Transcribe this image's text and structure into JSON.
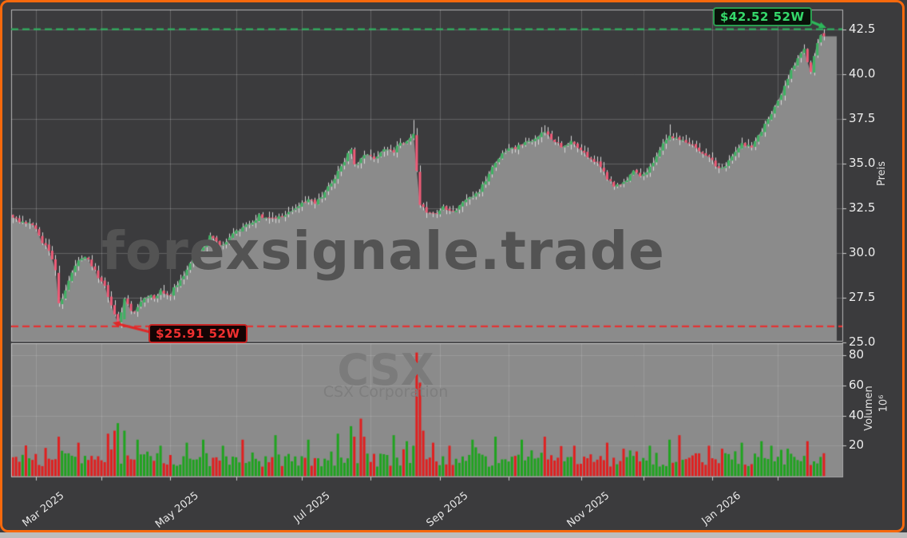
{
  "watermark": {
    "site": "forexsignale.trade",
    "symbol": "CSX",
    "company": "CSX Corporation"
  },
  "annotations": {
    "high": {
      "label": "$42.52 52W",
      "value": 42.52,
      "text_color": "#35d96b",
      "line_color": "#2fae5e"
    },
    "low": {
      "label": "$25.91 52W",
      "value": 25.91,
      "text_color": "#f13030",
      "line_color": "#e53232"
    }
  },
  "axes": {
    "price": {
      "title": "Preis",
      "tick_labels": [
        "42.5",
        "40.0",
        "37.5",
        "35.0",
        "32.5",
        "30.0",
        "27.5",
        "25.0"
      ],
      "ticks": [
        42.5,
        40.0,
        37.5,
        35.0,
        32.5,
        30.0,
        27.5,
        25.0
      ]
    },
    "volume": {
      "title": "Volumen",
      "unit": "10⁶",
      "tick_labels": [
        "80",
        "60",
        "40",
        "20"
      ],
      "ticks": [
        80,
        60,
        40,
        20
      ]
    },
    "x": {
      "labels": [
        "Mar 2025",
        "May 2025",
        "Jul 2025",
        "Sep 2025",
        "Nov 2025",
        "Jan 2026"
      ],
      "label_days": [
        7,
        48,
        88,
        130,
        173,
        213
      ],
      "tick_days": [
        7,
        27,
        48,
        68,
        88,
        109,
        130,
        151,
        173,
        192,
        213,
        233
      ]
    }
  },
  "chart_data": {
    "type": "candlestick+volume",
    "symbol": "CSX",
    "n_days": 248,
    "high_52w": 42.52,
    "low_52w": 25.91,
    "price_axis_range": [
      25.1,
      43.62
    ],
    "volume_axis_range_millions": [
      0,
      88
    ],
    "price_anchors": [
      [
        0,
        32.1
      ],
      [
        2,
        31.8
      ],
      [
        5,
        31.7
      ],
      [
        7,
        31.3
      ],
      [
        9,
        30.6
      ],
      [
        11,
        30.1
      ],
      [
        13,
        29.0
      ],
      [
        14,
        27.2
      ],
      [
        16,
        27.9
      ],
      [
        18,
        28.9
      ],
      [
        20,
        29.6
      ],
      [
        22,
        29.8
      ],
      [
        24,
        29.3
      ],
      [
        26,
        28.7
      ],
      [
        28,
        28.2
      ],
      [
        29,
        27.6
      ],
      [
        31,
        26.6
      ],
      [
        32,
        26.15
      ],
      [
        33,
        26.6
      ],
      [
        34,
        27.45
      ],
      [
        35,
        27.1
      ],
      [
        37,
        26.6
      ],
      [
        39,
        27.2
      ],
      [
        41,
        27.6
      ],
      [
        43,
        27.5
      ],
      [
        45,
        27.9
      ],
      [
        48,
        27.7
      ],
      [
        50,
        28.3
      ],
      [
        53,
        29.0
      ],
      [
        55,
        29.8
      ],
      [
        58,
        30.3
      ],
      [
        60,
        30.9
      ],
      [
        64,
        30.4
      ],
      [
        68,
        31.2
      ],
      [
        72,
        31.6
      ],
      [
        75,
        32.1
      ],
      [
        79,
        31.9
      ],
      [
        83,
        32.2
      ],
      [
        87,
        32.6
      ],
      [
        90,
        33.0
      ],
      [
        92,
        32.8
      ],
      [
        95,
        33.4
      ],
      [
        97,
        34.0
      ],
      [
        99,
        34.5
      ],
      [
        101,
        35.1
      ],
      [
        103,
        35.9
      ],
      [
        104,
        34.9
      ],
      [
        106,
        35.2
      ],
      [
        108,
        35.6
      ],
      [
        110,
        35.3
      ],
      [
        112,
        35.7
      ],
      [
        114,
        35.9
      ],
      [
        116,
        35.7
      ],
      [
        118,
        36.1
      ],
      [
        120,
        36.3
      ],
      [
        122,
        36.7
      ],
      [
        123,
        34.6
      ],
      [
        124,
        32.7
      ],
      [
        126,
        32.3
      ],
      [
        129,
        32.2
      ],
      [
        131,
        32.6
      ],
      [
        134,
        32.3
      ],
      [
        137,
        32.8
      ],
      [
        140,
        33.2
      ],
      [
        142,
        33.5
      ],
      [
        144,
        34.1
      ],
      [
        146,
        34.8
      ],
      [
        148,
        35.3
      ],
      [
        150,
        35.7
      ],
      [
        153,
        35.9
      ],
      [
        156,
        36.2
      ],
      [
        159,
        36.3
      ],
      [
        162,
        36.8
      ],
      [
        164,
        36.4
      ],
      [
        167,
        36.0
      ],
      [
        170,
        36.2
      ],
      [
        173,
        35.8
      ],
      [
        176,
        35.3
      ],
      [
        179,
        34.9
      ],
      [
        181,
        34.2
      ],
      [
        183,
        33.8
      ],
      [
        186,
        33.9
      ],
      [
        189,
        34.6
      ],
      [
        191,
        34.3
      ],
      [
        194,
        34.8
      ],
      [
        197,
        35.8
      ],
      [
        200,
        36.6
      ],
      [
        203,
        36.4
      ],
      [
        206,
        36.2
      ],
      [
        209,
        35.8
      ],
      [
        212,
        35.4
      ],
      [
        214,
        34.9
      ],
      [
        216,
        34.7
      ],
      [
        219,
        35.5
      ],
      [
        222,
        36.1
      ],
      [
        225,
        36.0
      ],
      [
        228,
        36.8
      ],
      [
        231,
        37.8
      ],
      [
        234,
        38.9
      ],
      [
        237,
        40.2
      ],
      [
        239,
        40.9
      ],
      [
        241,
        41.4
      ],
      [
        242,
        40.6
      ],
      [
        243,
        40.2
      ],
      [
        244,
        41.0
      ],
      [
        245,
        41.8
      ],
      [
        246,
        42.3
      ],
      [
        247,
        42.15
      ]
    ],
    "pinned_candles": {
      "14": {
        "open": 28.9,
        "close": 27.2
      },
      "32": {
        "open": 26.6,
        "close": 26.1,
        "low": 25.91
      },
      "34": {
        "open": 26.3,
        "close": 27.45
      },
      "122": {
        "high": 37.45
      },
      "123": {
        "open": 36.6,
        "close": 34.6
      },
      "124": {
        "open": 34.55,
        "close": 32.7
      },
      "162": {
        "high": 37.15
      },
      "200": {
        "high": 37.2
      },
      "247": {
        "open": 42.3,
        "close": 42.12,
        "high": 42.52,
        "low": 41.9
      }
    },
    "volume_spikes_millions": {
      "14": [
        26,
        "r"
      ],
      "20": [
        22,
        "r"
      ],
      "29": [
        28,
        "r"
      ],
      "31": [
        30,
        "r"
      ],
      "32": [
        35,
        "g"
      ],
      "34": [
        30,
        "g"
      ],
      "38": [
        24,
        "g"
      ],
      "45": [
        20,
        "g"
      ],
      "53": [
        22,
        "g"
      ],
      "58": [
        24,
        "g"
      ],
      "64": [
        20,
        "g"
      ],
      "70": [
        24,
        "r"
      ],
      "80": [
        27,
        "g"
      ],
      "90": [
        24,
        "g"
      ],
      "99": [
        28,
        "g"
      ],
      "103": [
        33,
        "g"
      ],
      "104": [
        26,
        "r"
      ],
      "106": [
        38,
        "r"
      ],
      "107": [
        26,
        "r"
      ],
      "116": [
        27,
        "g"
      ],
      "120": [
        23,
        "g"
      ],
      "122": [
        20,
        "g"
      ],
      "123": [
        82,
        "r"
      ],
      "124": [
        62,
        "r"
      ],
      "125": [
        30,
        "r"
      ],
      "128": [
        22,
        "r"
      ],
      "133": [
        20,
        "r"
      ],
      "140": [
        24,
        "g"
      ],
      "147": [
        26,
        "g"
      ],
      "155": [
        24,
        "g"
      ],
      "162": [
        26,
        "r"
      ],
      "171": [
        20,
        "r"
      ],
      "181": [
        22,
        "r"
      ],
      "186": [
        18,
        "r"
      ],
      "194": [
        20,
        "g"
      ],
      "200": [
        24,
        "g"
      ],
      "203": [
        27,
        "r"
      ],
      "212": [
        20,
        "r"
      ],
      "216": [
        18,
        "r"
      ],
      "222": [
        22,
        "g"
      ],
      "228": [
        23,
        "g"
      ],
      "231": [
        20,
        "g"
      ],
      "236": [
        18,
        "g"
      ],
      "242": [
        23,
        "r"
      ],
      "247": [
        15,
        "r"
      ]
    }
  },
  "colors": {
    "frame_border": "#f7690d",
    "background": "#3b3b3d",
    "area_fill": "#8b8b8b",
    "volume_panel_bg": "#8b8b8b",
    "candle_up": "#3eb262",
    "candle_down": "#f05c78",
    "wick": "#d9d9d9",
    "volume_up": "#1fa31f",
    "volume_down": "#e01f1f",
    "grid": "rgba(255,255,255,0.20)",
    "spine": "rgba(205,205,205,0.85)",
    "tick_label": "#ececec"
  }
}
